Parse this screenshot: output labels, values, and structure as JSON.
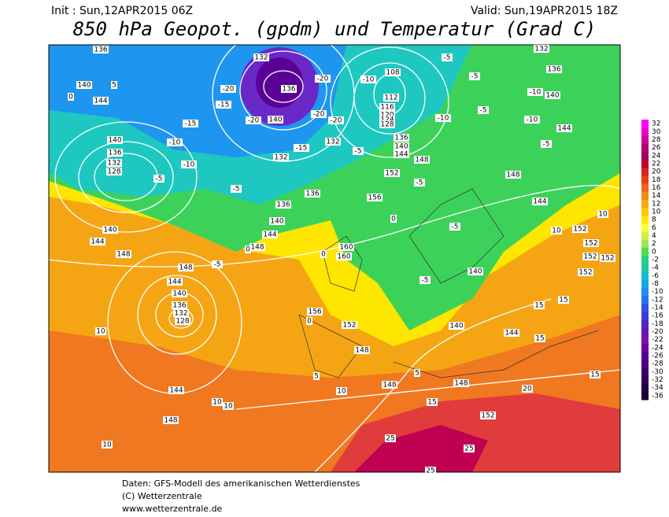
{
  "header": {
    "init": "Init : Sun,12APR2015 06Z",
    "valid": "Valid: Sun,19APR2015 18Z",
    "title": "850 hPa Geopot. (gpdm) und Temperatur (Grad C)"
  },
  "contour_labels": [
    "136",
    "140",
    "144",
    "140",
    "136",
    "132",
    "128",
    "132",
    "136",
    "140",
    "132",
    "132",
    "136",
    "136",
    "140",
    "144",
    "148",
    "140",
    "144",
    "148",
    "148",
    "144",
    "140",
    "136",
    "132",
    "128",
    "144",
    "148",
    "108",
    "112",
    "116",
    "120",
    "124",
    "128",
    "136",
    "140",
    "144",
    "152",
    "156",
    "148",
    "148",
    "144",
    "140",
    "136",
    "132",
    "144",
    "152",
    "152",
    "152",
    "152",
    "152",
    "140",
    "140",
    "144",
    "148",
    "152",
    "156",
    "148",
    "148",
    "152",
    "160",
    "160",
    "-5",
    "-10",
    "-10",
    "-5",
    "-20",
    "-15",
    "-15",
    "-20",
    "-20",
    "-20",
    "-20",
    "-10",
    "-10",
    "-5",
    "-15",
    "-5",
    "-5",
    "-10",
    "-5",
    "-10",
    "-5",
    "-5",
    "0",
    "-5",
    "-5",
    "-5",
    "0",
    "0",
    "0",
    "5",
    "5",
    "10",
    "10",
    "10",
    "10",
    "10",
    "10",
    "10",
    "15",
    "15",
    "15",
    "15",
    "15",
    "20",
    "25",
    "25",
    "25",
    "0",
    "5"
  ],
  "legend": {
    "labels": [
      "32",
      "30",
      "28",
      "26",
      "24",
      "22",
      "20",
      "18",
      "16",
      "14",
      "12",
      "10",
      "8",
      "6",
      "4",
      "2",
      "0",
      "-2",
      "-4",
      "-6",
      "-8",
      "-10",
      "-12",
      "-14",
      "-16",
      "-18",
      "-20",
      "-22",
      "-24",
      "-26",
      "-28",
      "-30",
      "-32",
      "-34",
      "-36"
    ],
    "colors": [
      "#ff00ff",
      "#f000c8",
      "#d20096",
      "#b4006e",
      "#a0005a",
      "#c00030",
      "#d81e1e",
      "#e83c14",
      "#f0641e",
      "#f08c1e",
      "#f5aa14",
      "#ffc800",
      "#ffe600",
      "#ffff30",
      "#d2f040",
      "#a0e650",
      "#50dc50",
      "#28d27a",
      "#1ec8a0",
      "#14bec8",
      "#14aae6",
      "#1e8cf0",
      "#2870f0",
      "#3250e6",
      "#3c3cdc",
      "#5028c8",
      "#6414b4",
      "#7814aa",
      "#6e00a0",
      "#5a0096",
      "#4b0082",
      "#3c006e",
      "#2d005a",
      "#230046",
      "#190032"
    ]
  },
  "footer": [
    "Daten: GFS-Modell des amerikanischen Wetterdienstes",
    "(C) Wetterzentrale",
    "www.wetterzentrale.de"
  ]
}
